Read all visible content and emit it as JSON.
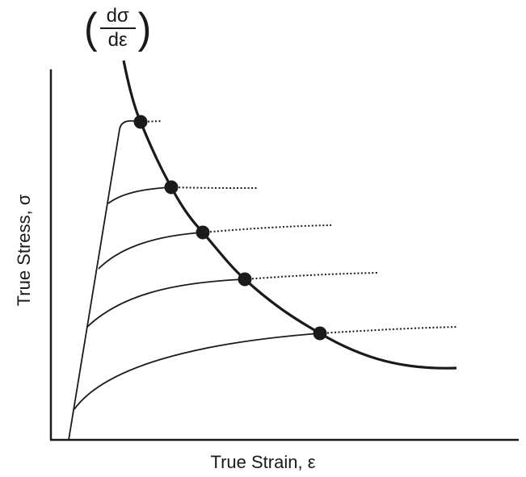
{
  "labels": {
    "xlabel": "True Strain, ε",
    "ylabel": "True Stress, σ",
    "envelope_numerator": "dσ",
    "envelope_denominator": "dε"
  },
  "colors": {
    "ink": "#1a1a1a",
    "dot": "#1a1a1a",
    "background": "#ffffff"
  }
}
